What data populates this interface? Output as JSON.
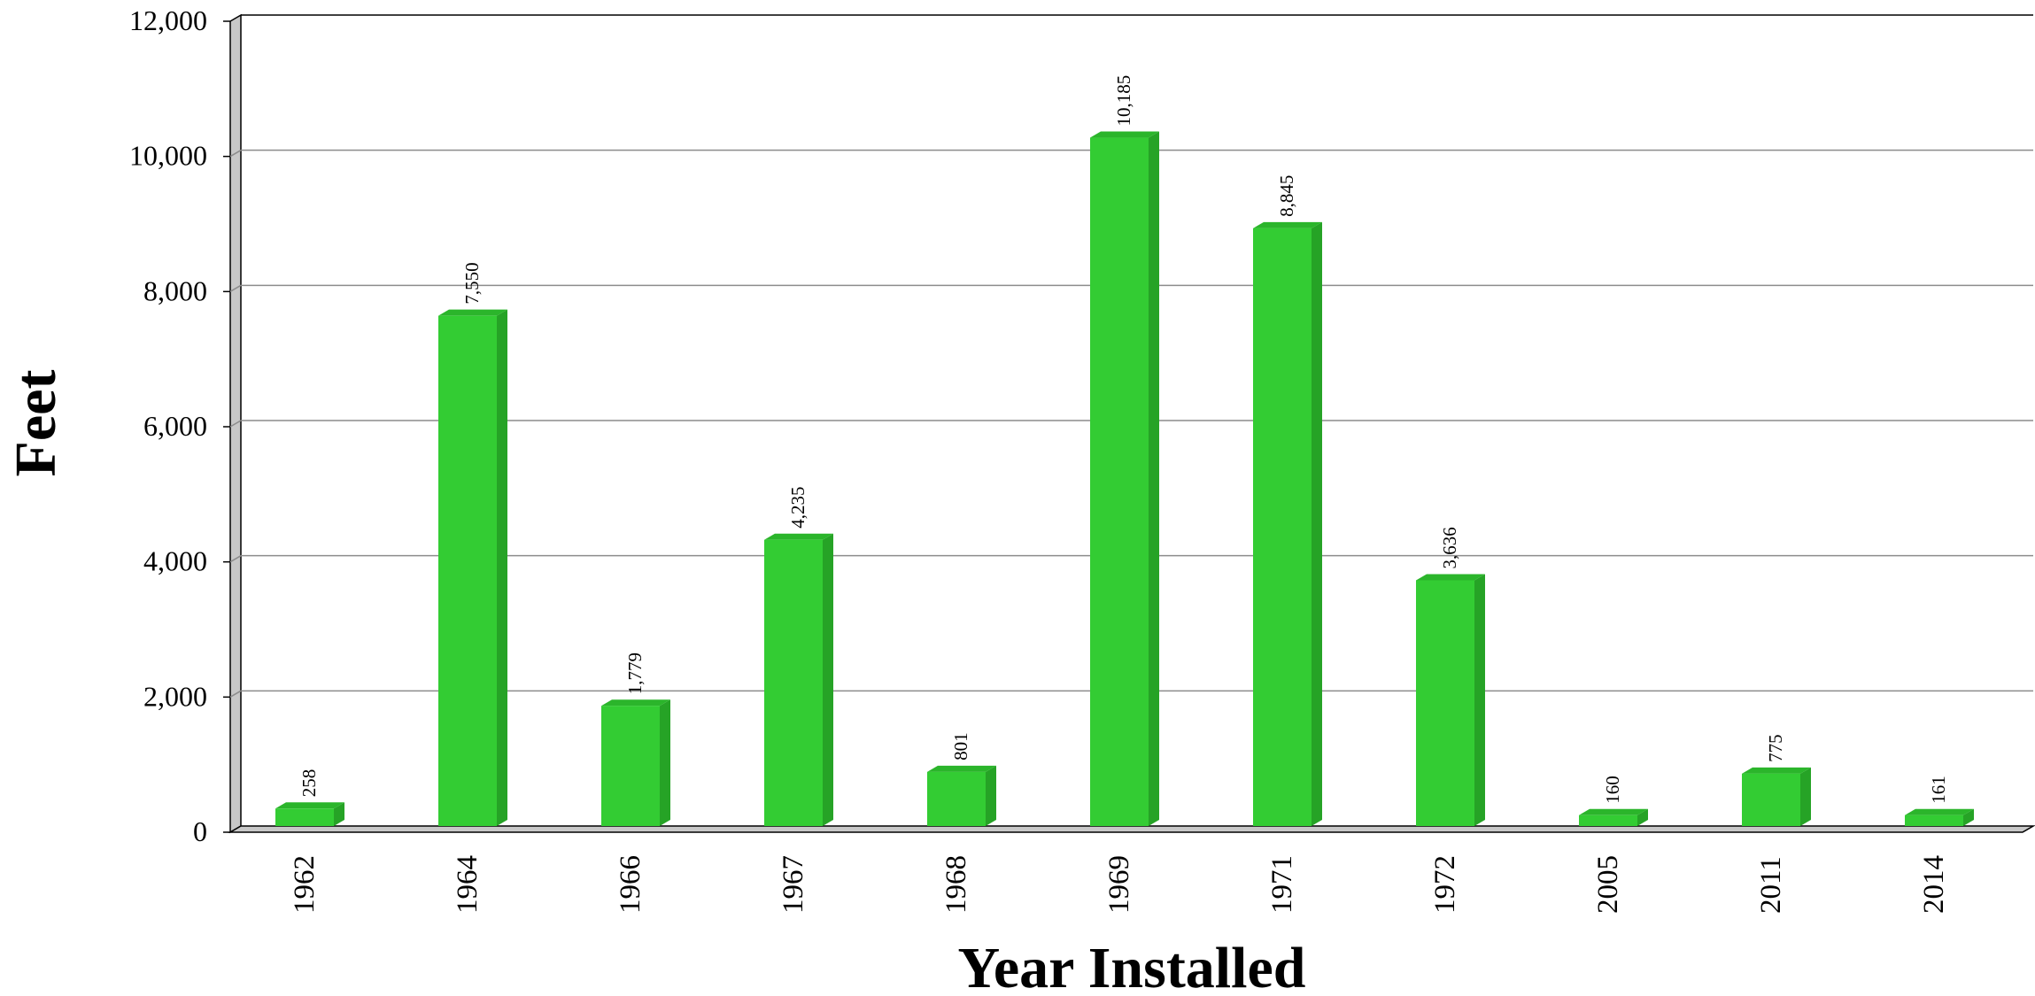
{
  "chart_data": {
    "type": "bar",
    "title": "",
    "xlabel": "Year Installed",
    "ylabel": "Feet",
    "categories": [
      "1962",
      "1964",
      "1966",
      "1967",
      "1968",
      "1969",
      "1971",
      "1972",
      "2005",
      "2011",
      "2014"
    ],
    "values": [
      258,
      7550,
      1779,
      4235,
      801,
      10185,
      8845,
      3636,
      160,
      775,
      161
    ],
    "data_labels": [
      "258",
      "7,550",
      "1,779",
      "4,235",
      "801",
      "10,185",
      "8,845",
      "3,636",
      "160",
      "775",
      "161"
    ],
    "ylim": [
      0,
      12000
    ],
    "yticks": [
      0,
      2000,
      4000,
      6000,
      8000,
      10000,
      12000
    ],
    "ytick_labels": [
      "0",
      "2,000",
      "4,000",
      "6,000",
      "8,000",
      "10,000",
      "12,000"
    ],
    "grid": true,
    "legend": "none",
    "style": "3d",
    "colors": {
      "bar_front": "#33cc33",
      "bar_side": "#26a326",
      "bar_top": "#2bb52b",
      "gridline": "#8c8c8c",
      "wall": "#c8c8c8",
      "axis": "#000000"
    }
  }
}
